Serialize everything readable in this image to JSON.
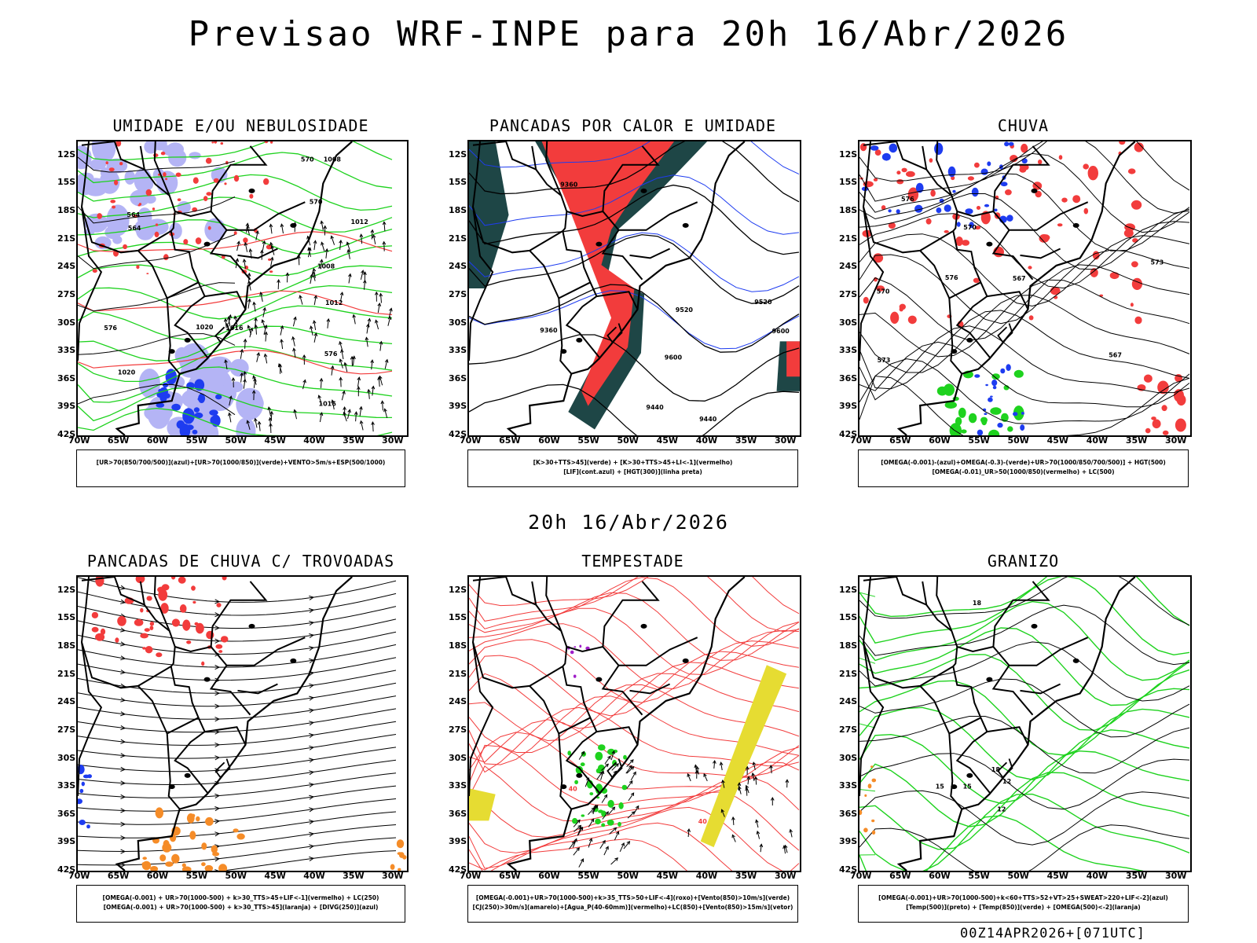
{
  "header": {
    "title": "Previsao WRF-INPE  para 20h 16/Abr/2026"
  },
  "mid_date": "20h 16/Abr/2026",
  "footer": "00Z14APR2026+[071UTC]",
  "axes": {
    "lat_labels": [
      "12S",
      "15S",
      "18S",
      "21S",
      "24S",
      "27S",
      "30S",
      "33S",
      "36S",
      "39S",
      "42S"
    ],
    "lon_labels": [
      "70W",
      "65W",
      "60W",
      "55W",
      "50W",
      "45W",
      "40W",
      "35W",
      "30W"
    ]
  },
  "colors": {
    "red": "#f23c3c",
    "green": "#1ed21e",
    "blue": "#1e3cf0",
    "lavender": "#b4b4f5",
    "teal": "#1e4646",
    "orange": "#f58c28",
    "yellow": "#e6dc32",
    "purple": "#a01ec8"
  },
  "panels": [
    {
      "id": "umidade",
      "title": "UMIDADE E/OU NEBULOSIDADE",
      "legend": [
        "[UR>70(850/700/500)](azul)+[UR>70(1000/850)](verde)+VENTO>5m/s+ESP(500/1000)"
      ]
    },
    {
      "id": "pancadas-calor",
      "title": "PANCADAS POR CALOR E UMIDADE",
      "legend": [
        "[K>30+TTS>45](verde) + [K>30+TTS>45+LI<-1](vermelho)",
        "[LIF](cont.azul) + [HGT(300)](linha preta)"
      ]
    },
    {
      "id": "chuva",
      "title": "CHUVA",
      "legend": [
        "[OMEGA(-0.001)-(azul)+OMEGA(-0.3)-(verde)+UR>70(1000/850/700/500)] + HGT(500)",
        "[OMEGA(-0.01)_UR>50(1000/850)(vermelho) + LC(500)"
      ]
    },
    {
      "id": "trovoadas",
      "title": "PANCADAS DE CHUVA C/ TROVOADAS",
      "legend": [
        "[OMEGA(-0.001) + UR>70(1000-500) + k>30_TTS>45+LIF<-1](vermelho) + LC(250)",
        "[OMEGA(-0.001) + UR>70(1000-500) + k>30_TTS>45](laranja) + [DIVG(250)](azul)"
      ]
    },
    {
      "id": "tempestade",
      "title": "TEMPESTADE",
      "legend": [
        "[OMEGA(-0.001)+UR>70(1000-500)+k>35_TTS>50+LIF<-4](roxo)+[Vento(850)>10m/s](verde)",
        "[CJ(250)>30m/s](amarelo)+[Agua_P(40-60mm)](vermelho)+LC(850)+[Vento(850)>15m/s](vetor)"
      ]
    },
    {
      "id": "granizo",
      "title": "GRANIZO",
      "legend": [
        "[OMEGA(-0.001)+UR>70(1000-500)+k<60+TTS>52+VT>25+SWEAT>220+LIF<-2](azul)",
        "[Temp(500)](preto) + [Temp(850)](verde) + [OMEGA(500)<-2](laranja)"
      ]
    }
  ],
  "contour_labels": {
    "umidade": [
      "1008",
      "1012",
      "1016",
      "1020",
      "570",
      "576",
      "564"
    ],
    "pancadas-calor": [
      "9600",
      "9520",
      "9440",
      "9360"
    ],
    "chuva": [
      "567",
      "570",
      "573",
      "576"
    ],
    "tempestade": [
      "40"
    ],
    "granizo": [
      "12",
      "15",
      "18"
    ]
  }
}
